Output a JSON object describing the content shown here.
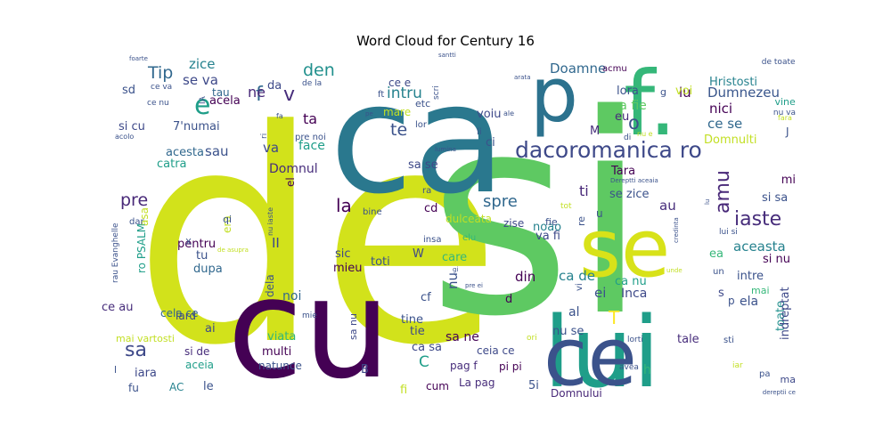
{
  "chart_data": {
    "type": "wordcloud",
    "title": "Word Cloud for Century 16",
    "words": [
      {
        "text": "de",
        "weight": 1.0,
        "color": "#d2e21b"
      },
      {
        "text": "si",
        "weight": 0.98,
        "color": "#5ec962"
      },
      {
        "text": "ca",
        "weight": 0.7,
        "color": "#2a788e"
      },
      {
        "text": "cu",
        "weight": 0.55,
        "color": "#440154"
      },
      {
        "text": "lui",
        "weight": 0.32,
        "color": "#1f9e89"
      },
      {
        "text": "ce",
        "weight": 0.3,
        "color": "#3b528b"
      },
      {
        "text": "se",
        "weight": 0.3,
        "color": "#d8e219"
      },
      {
        "text": "f.",
        "weight": 0.28,
        "color": "#35b779"
      },
      {
        "text": "p",
        "weight": 0.26,
        "color": "#2c728e"
      },
      {
        "text": "dacoromanica ro",
        "weight": 0.12,
        "color": "#3e4989"
      },
      {
        "text": "e",
        "weight": 0.09,
        "color": "#1f9e89"
      },
      {
        "text": "f",
        "weight": 0.08,
        "color": "#31688e"
      },
      {
        "text": "v",
        "weight": 0.07,
        "color": "#472d7b"
      },
      {
        "text": "den",
        "weight": 0.065,
        "color": "#21908d"
      },
      {
        "text": "intru",
        "weight": 0.06,
        "color": "#26828e"
      },
      {
        "text": "Tip",
        "weight": 0.06,
        "color": "#31688e"
      },
      {
        "text": "amu",
        "weight": 0.06,
        "color": "#482878"
      },
      {
        "text": "iaste",
        "weight": 0.058,
        "color": "#472d7b"
      },
      {
        "text": "sa",
        "weight": 0.056,
        "color": "#3e4989"
      },
      {
        "text": "te",
        "weight": 0.055,
        "color": "#3b528b"
      },
      {
        "text": "o",
        "weight": 0.055,
        "color": "#3b528b"
      },
      {
        "text": "la",
        "weight": 0.055,
        "color": "#440154"
      },
      {
        "text": "spre",
        "weight": 0.052,
        "color": "#31688e"
      },
      {
        "text": "pre",
        "weight": 0.05,
        "color": "#482878"
      },
      {
        "text": "zice",
        "weight": 0.045,
        "color": "#26828e"
      },
      {
        "text": "se va",
        "weight": 0.045,
        "color": "#3e4989"
      },
      {
        "text": "ne",
        "weight": 0.045,
        "color": "#482878"
      },
      {
        "text": "Doamne",
        "weight": 0.045,
        "color": "#31688e"
      },
      {
        "text": "lu",
        "weight": 0.045,
        "color": "#440154"
      },
      {
        "text": "Dumnezeu",
        "weight": 0.045,
        "color": "#39568c"
      },
      {
        "text": "nici",
        "weight": 0.045,
        "color": "#440154"
      },
      {
        "text": "ce se",
        "weight": 0.045,
        "color": "#31688e"
      },
      {
        "text": "Hristosti",
        "weight": 0.042,
        "color": "#26828e"
      },
      {
        "text": "sau",
        "weight": 0.045,
        "color": "#3b528b"
      },
      {
        "text": "va",
        "weight": 0.045,
        "color": "#3e4989"
      },
      {
        "text": "face",
        "weight": 0.042,
        "color": "#1f9e89"
      },
      {
        "text": "ta",
        "weight": 0.045,
        "color": "#440154"
      },
      {
        "text": "Domnul",
        "weight": 0.042,
        "color": "#472d7b"
      },
      {
        "text": "ti",
        "weight": 0.045,
        "color": "#482878"
      },
      {
        "text": "se zice",
        "weight": 0.042,
        "color": "#3b528b"
      },
      {
        "text": "au",
        "weight": 0.045,
        "color": "#472d7b"
      },
      {
        "text": "aceasta",
        "weight": 0.045,
        "color": "#26828e"
      },
      {
        "text": "II",
        "weight": 0.045,
        "color": "#3e4989"
      },
      {
        "text": "T",
        "weight": 0.06,
        "color": "#fde725"
      },
      {
        "text": "nu",
        "weight": 0.05,
        "color": "#3b528b"
      },
      {
        "text": "ca de",
        "weight": 0.042,
        "color": "#26828e"
      },
      {
        "text": "ca nu",
        "weight": 0.042,
        "color": "#1f9e89"
      },
      {
        "text": "din",
        "weight": 0.045,
        "color": "#440154"
      },
      {
        "text": "ei",
        "weight": 0.045,
        "color": "#3b528b"
      },
      {
        "text": "Inca",
        "weight": 0.042,
        "color": "#3e4989"
      },
      {
        "text": "ela",
        "weight": 0.04,
        "color": "#3b528b"
      },
      {
        "text": "toate",
        "weight": 0.04,
        "color": "#21908d"
      },
      {
        "text": "indreptat",
        "weight": 0.04,
        "color": "#3e4989"
      },
      {
        "text": "acela",
        "weight": 0.04,
        "color": "#440154"
      },
      {
        "text": "tau",
        "weight": 0.038,
        "color": "#31688e"
      },
      {
        "text": "da",
        "weight": 0.038,
        "color": "#3e4989"
      },
      {
        "text": "ce e",
        "weight": 0.038,
        "color": "#3e4989"
      },
      {
        "text": "voiu",
        "weight": 0.038,
        "color": "#3e4989"
      },
      {
        "text": "lora",
        "weight": 0.038,
        "color": "#3b528b"
      },
      {
        "text": "sa fie",
        "weight": 0.038,
        "color": "#5ec962"
      },
      {
        "text": "eu",
        "weight": 0.038,
        "color": "#472d7b"
      },
      {
        "text": "M",
        "weight": 0.035,
        "color": "#472d7b"
      },
      {
        "text": "Domnulti",
        "weight": 0.038,
        "color": "#c2df23"
      },
      {
        "text": "J",
        "weight": 0.035,
        "color": "#3b528b"
      },
      {
        "text": "mi",
        "weight": 0.035,
        "color": "#440154"
      },
      {
        "text": "si sa",
        "weight": 0.035,
        "color": "#3b528b"
      },
      {
        "text": "si nu",
        "weight": 0.035,
        "color": "#440154"
      },
      {
        "text": "intre",
        "weight": 0.035,
        "color": "#3b528b"
      },
      {
        "text": "ea",
        "weight": 0.035,
        "color": "#35b779"
      },
      {
        "text": "mai",
        "weight": 0.03,
        "color": "#35b779"
      },
      {
        "text": "acesta",
        "weight": 0.035,
        "color": "#31688e"
      },
      {
        "text": "catra",
        "weight": 0.035,
        "color": "#1f9e89"
      },
      {
        "text": "7'numai",
        "weight": 0.035,
        "color": "#3b528b"
      },
      {
        "text": "si cu",
        "weight": 0.035,
        "color": "#3e4989"
      },
      {
        "text": "sd",
        "weight": 0.035,
        "color": "#3b528b"
      },
      {
        "text": "sa se",
        "weight": 0.035,
        "color": "#3e4989"
      },
      {
        "text": "Tara",
        "weight": 0.035,
        "color": "#440154"
      },
      {
        "text": "noao",
        "weight": 0.035,
        "color": "#26828e"
      },
      {
        "text": "cd",
        "weight": 0.035,
        "color": "#440154"
      },
      {
        "text": "va fi",
        "weight": 0.035,
        "color": "#3e4989"
      },
      {
        "text": "zise",
        "weight": 0.032,
        "color": "#3e4989"
      },
      {
        "text": "fie",
        "weight": 0.03,
        "color": "#3b528b"
      },
      {
        "text": "W",
        "weight": 0.035,
        "color": "#3e4989"
      },
      {
        "text": "care",
        "weight": 0.035,
        "color": "#35b779"
      },
      {
        "text": "sic",
        "weight": 0.035,
        "color": "#3e4989"
      },
      {
        "text": "toti",
        "weight": 0.035,
        "color": "#3b528b"
      },
      {
        "text": "mieu",
        "weight": 0.035,
        "color": "#440154"
      },
      {
        "text": "dupa",
        "weight": 0.035,
        "color": "#31688e"
      },
      {
        "text": "tu",
        "weight": 0.035,
        "color": "#3b528b"
      },
      {
        "text": "pentru",
        "weight": 0.035,
        "color": "#440154"
      },
      {
        "text": "era",
        "weight": 0.03,
        "color": "#c2df23"
      },
      {
        "text": "ro PSALM",
        "weight": 0.03,
        "color": "#1f9e89"
      },
      {
        "text": "asa",
        "weight": 0.032,
        "color": "#c2df23"
      },
      {
        "text": "dela",
        "weight": 0.032,
        "color": "#3b528b"
      },
      {
        "text": "el",
        "weight": 0.035,
        "color": "#440154"
      },
      {
        "text": "noi",
        "weight": 0.03,
        "color": "#31688e"
      },
      {
        "text": "cf",
        "weight": 0.035,
        "color": "#3b528b"
      },
      {
        "text": "d",
        "weight": 0.035,
        "color": "#440154"
      },
      {
        "text": "s",
        "weight": 0.035,
        "color": "#3e4989"
      },
      {
        "text": "al",
        "weight": 0.035,
        "color": "#3b528b"
      },
      {
        "text": "tine",
        "weight": 0.035,
        "color": "#3b528b"
      },
      {
        "text": "tie",
        "weight": 0.035,
        "color": "#3e4989"
      },
      {
        "text": "ce au",
        "weight": 0.035,
        "color": "#472d7b"
      },
      {
        "text": "cela ce",
        "weight": 0.032,
        "color": "#31688e"
      },
      {
        "text": "ai",
        "weight": 0.035,
        "color": "#3e4989"
      },
      {
        "text": "lard",
        "weight": 0.032,
        "color": "#3e4989"
      },
      {
        "text": "viata",
        "weight": 0.035,
        "color": "#35b779"
      },
      {
        "text": "multi",
        "weight": 0.035,
        "color": "#440154"
      },
      {
        "text": "si de",
        "weight": 0.03,
        "color": "#472d7b"
      },
      {
        "text": "iara",
        "weight": 0.035,
        "color": "#3e4989"
      },
      {
        "text": "aceia",
        "weight": 0.03,
        "color": "#1f9e89"
      },
      {
        "text": "sa ne",
        "weight": 0.035,
        "color": "#440154"
      },
      {
        "text": "ca sa",
        "weight": 0.035,
        "color": "#3e4989"
      },
      {
        "text": "ceia ce",
        "weight": 0.032,
        "color": "#3e4989"
      },
      {
        "text": "nu se",
        "weight": 0.035,
        "color": "#3b528b"
      },
      {
        "text": "tale",
        "weight": 0.032,
        "color": "#472d7b"
      },
      {
        "text": "natunce",
        "weight": 0.032,
        "color": "#3b528b"
      },
      {
        "text": "B",
        "weight": 0.035,
        "color": "#3e4989"
      },
      {
        "text": "C",
        "weight": 0.045,
        "color": "#1f9e89"
      },
      {
        "text": "pag f",
        "weight": 0.032,
        "color": "#472d7b"
      },
      {
        "text": "pi pi",
        "weight": 0.032,
        "color": "#440154"
      },
      {
        "text": "fi",
        "weight": 0.035,
        "color": "#c2df23"
      },
      {
        "text": "cum",
        "weight": 0.032,
        "color": "#440154"
      },
      {
        "text": "La pag",
        "weight": 0.032,
        "color": "#472d7b"
      },
      {
        "text": "5i",
        "weight": 0.035,
        "color": "#3b528b"
      },
      {
        "text": "Domnului",
        "weight": 0.032,
        "color": "#482878"
      },
      {
        "text": "h",
        "weight": 0.035,
        "color": "#35b779"
      },
      {
        "text": "ma",
        "weight": 0.025,
        "color": "#3e4989"
      },
      {
        "text": "fu",
        "weight": 0.032,
        "color": "#3b528b"
      },
      {
        "text": "AC",
        "weight": 0.032,
        "color": "#26828e"
      },
      {
        "text": "le",
        "weight": 0.032,
        "color": "#3b528b"
      },
      {
        "text": "sa nu",
        "weight": 0.03,
        "color": "#3e4989"
      },
      {
        "text": "voi",
        "weight": 0.035,
        "color": "#c2df23"
      },
      {
        "text": "vine",
        "weight": 0.03,
        "color": "#1f9e89"
      },
      {
        "text": "ci",
        "weight": 0.035,
        "color": "#3b528b"
      },
      {
        "text": "mare",
        "weight": 0.03,
        "color": "#c2df23"
      },
      {
        "text": "etc",
        "weight": 0.025,
        "color": "#3b528b"
      },
      {
        "text": "ft",
        "weight": 0.025,
        "color": "#3b528b"
      },
      {
        "text": "pre noi",
        "weight": 0.022,
        "color": "#3b528b"
      },
      {
        "text": "ri",
        "weight": 0.022,
        "color": "#3b528b"
      },
      {
        "text": "lor",
        "weight": 0.022,
        "color": "#3b528b"
      },
      {
        "text": "li",
        "weight": 0.022,
        "color": "#3b528b"
      },
      {
        "text": "ra",
        "weight": 0.022,
        "color": "#3b528b"
      },
      {
        "text": "bine",
        "weight": 0.022,
        "color": "#3b528b"
      },
      {
        "text": "insa",
        "weight": 0.022,
        "color": "#3b528b"
      },
      {
        "text": "tot",
        "weight": 0.02,
        "color": "#c2df23"
      },
      {
        "text": "u",
        "weight": 0.025,
        "color": "#3b528b"
      },
      {
        "text": "re",
        "weight": 0.025,
        "color": "#3b528b"
      },
      {
        "text": "acmu",
        "weight": 0.022,
        "color": "#440154"
      },
      {
        "text": "g",
        "weight": 0.022,
        "color": "#3b528b"
      },
      {
        "text": "di",
        "weight": 0.02,
        "color": "#3b528b"
      },
      {
        "text": "elu",
        "weight": 0.025,
        "color": "#35b779"
      },
      {
        "text": "un",
        "weight": 0.022,
        "color": "#3b528b"
      },
      {
        "text": "vi",
        "weight": 0.02,
        "color": "#3b528b"
      },
      {
        "text": "p",
        "weight": 0.028,
        "color": "#3b528b"
      },
      {
        "text": "lui si",
        "weight": 0.022,
        "color": "#3b528b"
      },
      {
        "text": "qi",
        "weight": 0.022,
        "color": "#3b528b"
      },
      {
        "text": "X",
        "weight": 0.022,
        "color": "#3b528b"
      },
      {
        "text": "dar",
        "weight": 0.022,
        "color": "#3b528b"
      },
      {
        "text": "rau Evanghelle",
        "weight": 0.02,
        "color": "#3b528b"
      },
      {
        "text": "mie",
        "weight": 0.02,
        "color": "#3b528b"
      },
      {
        "text": "ori",
        "weight": 0.02,
        "color": "#c2df23"
      },
      {
        "text": "lorti",
        "weight": 0.022,
        "color": "#3b528b"
      },
      {
        "text": "sti",
        "weight": 0.022,
        "color": "#3b528b"
      },
      {
        "text": "avea",
        "weight": 0.022,
        "color": "#3b528b"
      },
      {
        "text": "pa",
        "weight": 0.02,
        "color": "#3b528b"
      },
      {
        "text": "iar",
        "weight": 0.02,
        "color": "#c2df23"
      },
      {
        "text": "mai vartosti",
        "weight": 0.022,
        "color": "#c2df23"
      },
      {
        "text": "l",
        "weight": 0.022,
        "color": "#3b528b"
      },
      {
        "text": "de toate",
        "weight": 0.02,
        "color": "#3b528b"
      },
      {
        "text": "nu va",
        "weight": 0.02,
        "color": "#3b528b"
      },
      {
        "text": "fara",
        "weight": 0.018,
        "color": "#c2df23"
      },
      {
        "text": "ce va",
        "weight": 0.02,
        "color": "#3b528b"
      },
      {
        "text": "ce nu",
        "weight": 0.02,
        "color": "#3b528b"
      },
      {
        "text": "IA",
        "weight": 0.02,
        "color": "#3b528b"
      },
      {
        "text": "de la",
        "weight": 0.018,
        "color": "#3b528b"
      },
      {
        "text": "scri",
        "weight": 0.018,
        "color": "#3b528b"
      },
      {
        "text": "santti",
        "weight": 0.016,
        "color": "#3b528b"
      },
      {
        "text": "arata",
        "weight": 0.016,
        "color": "#3b528b"
      },
      {
        "text": "fa",
        "weight": 0.016,
        "color": "#3b528b"
      },
      {
        "text": "acolo",
        "weight": 0.016,
        "color": "#3b528b"
      },
      {
        "text": "lumina",
        "weight": 0.016,
        "color": "#3b528b"
      },
      {
        "text": "ale",
        "weight": 0.016,
        "color": "#3b528b"
      },
      {
        "text": "pe",
        "weight": 0.016,
        "color": "#3b528b"
      },
      {
        "text": "nu e",
        "weight": 0.014,
        "color": "#c2df23"
      },
      {
        "text": "Dereptti aceaia",
        "weight": 0.016,
        "color": "#3b528b"
      },
      {
        "text": "nu iaste",
        "weight": 0.016,
        "color": "#3b528b"
      },
      {
        "text": "de asupra",
        "weight": 0.018,
        "color": "#c2df23"
      },
      {
        "text": "gi",
        "weight": 0.016,
        "color": "#3b528b"
      },
      {
        "text": "pre ei",
        "weight": 0.016,
        "color": "#3b528b"
      },
      {
        "text": "unde",
        "weight": 0.016,
        "color": "#c2df23"
      },
      {
        "text": "credinta",
        "weight": 0.016,
        "color": "#3b528b"
      },
      {
        "text": "lu",
        "weight": 0.016,
        "color": "#3b528b"
      },
      {
        "text": "dereptii ce",
        "weight": 0.014,
        "color": "#3b528b"
      },
      {
        "text": "foarte",
        "weight": 0.016,
        "color": "#3b528b"
      },
      {
        "text": "dulceata",
        "weight": 0.016,
        "color": "#c2df23"
      }
    ]
  }
}
